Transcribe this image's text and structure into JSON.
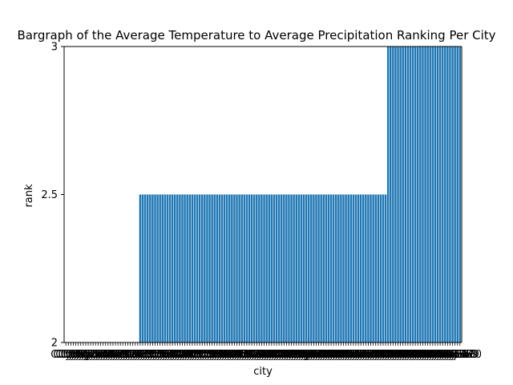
{
  "chart_data": {
    "type": "bar",
    "title": "Bargraph of the Average Temperature to Average Precipitation Ranking Per City",
    "xlabel": "city",
    "ylabel": "rank",
    "ylim": [
      2,
      3
    ],
    "yticks": [
      2,
      2.5,
      3
    ],
    "ytick_labels": [
      "2",
      "2.5",
      "3"
    ],
    "grid": false,
    "legend": "none",
    "bar_color": "#1f77b4",
    "categories": [
      "City 1",
      "City 2",
      "City 3",
      "City 4",
      "City 5",
      "City 6",
      "City 7",
      "City 8",
      "City 9",
      "City 10",
      "City 11",
      "City 12",
      "City 13",
      "City 14",
      "City 15",
      "City 16",
      "City 17",
      "City 18",
      "City 19",
      "City 20",
      "City 21",
      "City 22",
      "City 23",
      "City 24",
      "City 25",
      "City 26",
      "City 27",
      "City 28",
      "City 29",
      "City 30",
      "City 31",
      "City 32",
      "City 33",
      "City 34",
      "City 35",
      "City 36",
      "City 37",
      "City 38",
      "City 39",
      "City 40",
      "City 41",
      "City 42",
      "City 43",
      "City 44",
      "City 45",
      "City 46",
      "City 47",
      "City 48",
      "City 49",
      "City 50",
      "City 51",
      "City 52",
      "City 53",
      "City 54",
      "City 55",
      "City 56",
      "City 57",
      "City 58",
      "City 59",
      "City 60",
      "City 61",
      "City 62",
      "City 63",
      "City 64",
      "City 65",
      "City 66",
      "City 67",
      "City 68",
      "City 69",
      "City 70",
      "City 71",
      "City 72",
      "City 73",
      "City 74",
      "City 75",
      "City 76",
      "City 77",
      "City 78",
      "City 79",
      "City 80",
      "City 81",
      "City 82",
      "City 83",
      "City 84",
      "City 85",
      "City 86",
      "City 87",
      "City 88",
      "City 89",
      "City 90",
      "City 91",
      "City 92",
      "City 93",
      "City 94",
      "City 95",
      "City 96",
      "City 97",
      "City 98",
      "City 99",
      "City 100",
      "City 101",
      "City 102",
      "City 103",
      "City 104",
      "City 105",
      "City 106",
      "City 107",
      "City 108",
      "City 109",
      "City 110",
      "City 111",
      "City 112",
      "City 113",
      "City 114",
      "City 115",
      "City 116",
      "City 117",
      "City 118",
      "City 119",
      "City 120",
      "City 121",
      "City 122",
      "City 123",
      "City 124",
      "City 125",
      "City 126",
      "City 127",
      "City 128",
      "City 129",
      "City 130",
      "City 131",
      "City 132",
      "City 133",
      "City 134",
      "City 135",
      "City 136",
      "City 137",
      "City 138",
      "City 139",
      "City 140",
      "City 141",
      "City 142",
      "City 143",
      "City 144",
      "City 145",
      "City 146",
      "City 147",
      "City 148",
      "City 149",
      "City 150",
      "City 151",
      "City 152",
      "City 153",
      "City 154",
      "City 155",
      "City 156",
      "City 157",
      "City 158",
      "City 159",
      "City 160"
    ],
    "values": [
      2,
      2,
      2,
      2,
      2,
      2,
      2,
      2,
      2,
      2,
      2,
      2,
      2,
      2,
      2,
      2,
      2,
      2,
      2,
      2,
      2,
      2,
      2,
      2,
      2,
      2,
      2,
      2,
      2,
      2,
      2.5,
      2.5,
      2.5,
      2.5,
      2.5,
      2.5,
      2.5,
      2.5,
      2.5,
      2.5,
      2.5,
      2.5,
      2.5,
      2.5,
      2.5,
      2.5,
      2.5,
      2.5,
      2.5,
      2.5,
      2.5,
      2.5,
      2.5,
      2.5,
      2.5,
      2.5,
      2.5,
      2.5,
      2.5,
      2.5,
      2.5,
      2.5,
      2.5,
      2.5,
      2.5,
      2.5,
      2.5,
      2.5,
      2.5,
      2.5,
      2.5,
      2.5,
      2.5,
      2.5,
      2.5,
      2.5,
      2.5,
      2.5,
      2.5,
      2.5,
      2.5,
      2.5,
      2.5,
      2.5,
      2.5,
      2.5,
      2.5,
      2.5,
      2.5,
      2.5,
      2.5,
      2.5,
      2.5,
      2.5,
      2.5,
      2.5,
      2.5,
      2.5,
      2.5,
      2.5,
      2.5,
      2.5,
      2.5,
      2.5,
      2.5,
      2.5,
      2.5,
      2.5,
      2.5,
      2.5,
      2.5,
      2.5,
      2.5,
      2.5,
      2.5,
      2.5,
      2.5,
      2.5,
      2.5,
      2.5,
      2.5,
      2.5,
      2.5,
      2.5,
      2.5,
      2.5,
      2.5,
      2.5,
      2.5,
      2.5,
      3,
      3,
      3,
      3,
      3,
      3,
      3,
      3,
      3,
      3,
      3,
      3,
      3,
      3,
      3,
      3,
      3,
      3,
      3,
      3,
      3,
      3,
      3,
      3,
      3,
      3,
      3,
      3,
      3,
      3
    ],
    "x_tick_labels_legible": false
  }
}
